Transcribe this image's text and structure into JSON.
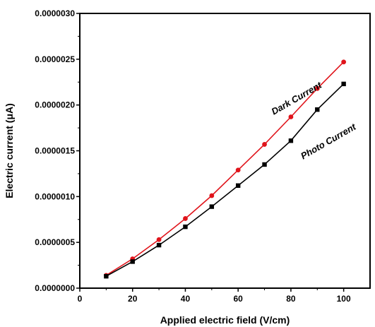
{
  "chart_data": {
    "type": "line",
    "xlabel": "Applied electric field (V/cm)",
    "ylabel": "Electric current (μA)",
    "xlim": [
      0,
      110
    ],
    "ylim": [
      0,
      3e-06
    ],
    "x_ticks": [
      "0",
      "20",
      "40",
      "60",
      "80",
      "100"
    ],
    "y_ticks": [
      "0.0000000",
      "0.0000005",
      "0.0000010",
      "0.0000015",
      "0.0000020",
      "0.0000025",
      "0.0000030"
    ],
    "grid": false,
    "series": [
      {
        "name": "Dark Current",
        "color": "#e0141b",
        "marker": "circle",
        "x": [
          10,
          20,
          30,
          40,
          50,
          60,
          70,
          80,
          90,
          100
        ],
        "y": [
          1.4e-07,
          3.2e-07,
          5.3e-07,
          7.6e-07,
          1.01e-06,
          1.29e-06,
          1.57e-06,
          1.87e-06,
          2.18e-06,
          2.47e-06
        ]
      },
      {
        "name": "Photo Current",
        "color": "#000000",
        "marker": "square",
        "x": [
          10,
          20,
          30,
          40,
          50,
          60,
          70,
          80,
          90,
          100
        ],
        "y": [
          1.3e-07,
          2.9e-07,
          4.7e-07,
          6.7e-07,
          8.9e-07,
          1.12e-06,
          1.35e-06,
          1.61e-06,
          1.95e-06,
          2.23e-06
        ]
      }
    ]
  }
}
